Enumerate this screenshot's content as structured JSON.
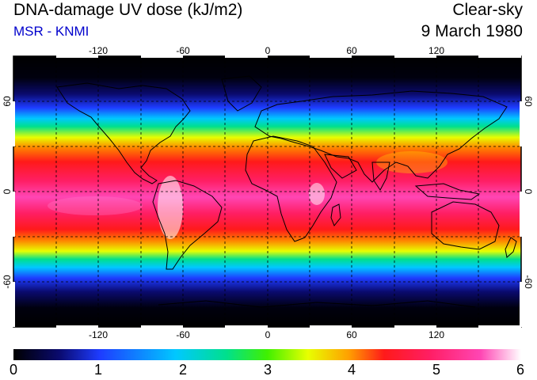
{
  "header": {
    "title": "DNA-damage UV dose (kJ/m2)",
    "source": "MSR - KNMI",
    "sky_condition": "Clear-sky",
    "date": "9 March 1980"
  },
  "map": {
    "projection": "equirectangular",
    "lon_range": [
      -180,
      180
    ],
    "lat_range": [
      -90,
      90
    ],
    "lon_ticks": [
      "-120",
      "-60",
      "0",
      "60",
      "120"
    ],
    "lat_ticks": [
      "60",
      "0",
      "-60"
    ],
    "grid": "dashed every 30 degrees"
  },
  "colorbar": {
    "min": 0,
    "max": 6,
    "tick_labels": [
      "0",
      "1",
      "2",
      "3",
      "4",
      "5",
      "6"
    ],
    "colors": [
      "#000000",
      "#0a0a6e",
      "#1e3cff",
      "#00c8ff",
      "#00e08c",
      "#40f000",
      "#e8ff00",
      "#ffa000",
      "#ff1a1a",
      "#ff1e64",
      "#ff46b4",
      "#ffffff"
    ]
  }
}
